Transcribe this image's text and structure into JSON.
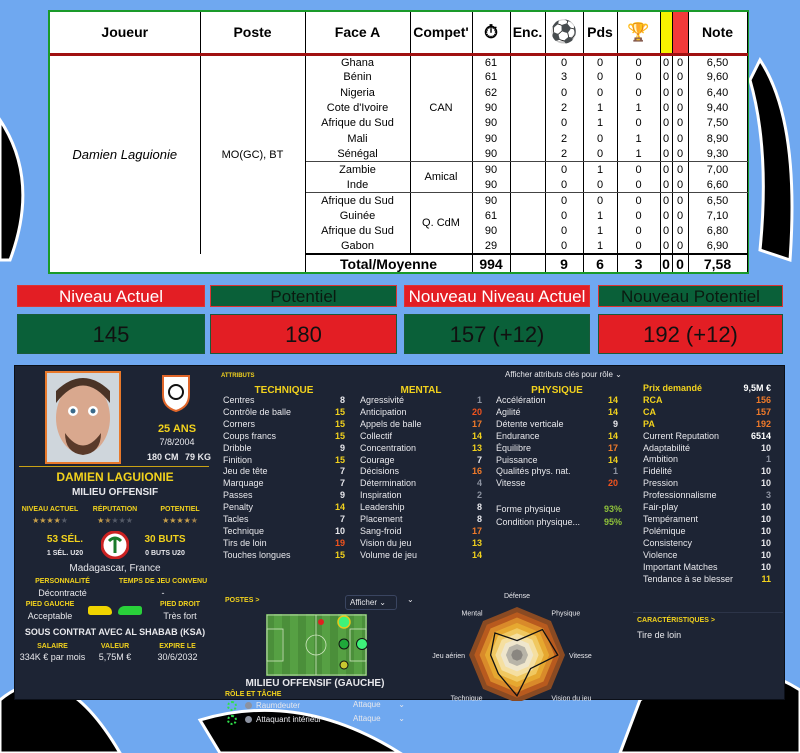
{
  "stats_table": {
    "headers": [
      "Joueur",
      "Poste",
      "Face A",
      "Compet'",
      "clock-icon",
      "Enc.",
      "ball-icon",
      "Pds",
      "trophy-icon",
      "yellow-card",
      "red-card",
      "Note"
    ],
    "player": "Damien Laguionie",
    "position": "MO(GC), BT",
    "groups": [
      {
        "competition": "CAN",
        "matches": [
          [
            "Ghana",
            "61",
            "",
            "0",
            "0",
            "0",
            "0",
            "0",
            "6,50"
          ],
          [
            "Bénin",
            "61",
            "",
            "3",
            "0",
            "0",
            "0",
            "0",
            "9,60"
          ],
          [
            "Nigeria",
            "62",
            "",
            "0",
            "0",
            "0",
            "0",
            "0",
            "6,40"
          ],
          [
            "Cote d'Ivoire",
            "90",
            "",
            "2",
            "1",
            "1",
            "0",
            "0",
            "9,40"
          ],
          [
            "Afrique du Sud",
            "90",
            "",
            "0",
            "1",
            "0",
            "0",
            "0",
            "7,50"
          ],
          [
            "Mali",
            "90",
            "",
            "2",
            "0",
            "1",
            "0",
            "0",
            "8,90"
          ],
          [
            "Sénégal",
            "90",
            "",
            "2",
            "0",
            "1",
            "0",
            "0",
            "9,30"
          ]
        ]
      },
      {
        "competition": "Amical",
        "matches": [
          [
            "Zambie",
            "90",
            "",
            "0",
            "1",
            "0",
            "0",
            "0",
            "7,00"
          ],
          [
            "Inde",
            "90",
            "",
            "0",
            "0",
            "0",
            "0",
            "0",
            "6,60"
          ]
        ]
      },
      {
        "competition": "Q. CdM",
        "matches": [
          [
            "Afrique du Sud",
            "90",
            "",
            "0",
            "0",
            "0",
            "0",
            "0",
            "6,50"
          ],
          [
            "Guinée",
            "61",
            "",
            "0",
            "1",
            "0",
            "0",
            "0",
            "7,10"
          ],
          [
            "Afrique du Sud",
            "90",
            "",
            "0",
            "1",
            "0",
            "0",
            "0",
            "6,80"
          ],
          [
            "Gabon",
            "29",
            "",
            "0",
            "1",
            "0",
            "0",
            "0",
            "6,90"
          ]
        ]
      }
    ],
    "total": {
      "label": "Total/Moyenne",
      "minutes": "994",
      "enc": "",
      "goals": "9",
      "assists": "6",
      "trophies": "3",
      "yellow": "0",
      "red": "0",
      "note": "7,58"
    }
  },
  "levels": [
    {
      "label": "Niveau Actuel",
      "value": "145",
      "label_color": "#e31e24",
      "value_color": "#0a6039"
    },
    {
      "label": "Potentiel",
      "value": "180",
      "label_color": "#0a6039",
      "value_color": "#e31e24"
    },
    {
      "label": "Nouveau Niveau Actuel",
      "value": "157 (+12)",
      "label_color": "#e31e24",
      "value_color": "#0a6039"
    },
    {
      "label": "Nouveau Potentiel",
      "value": "192 (+12)",
      "label_color": "#0a6039",
      "value_color": "#e31e24"
    }
  ],
  "profile": {
    "age": "25 ANS",
    "birth": "7/8/2004",
    "height": "180 CM",
    "weight": "79 KG",
    "name": "DAMIEN LAGUIONIE",
    "role": "MILIEU OFFENSIF",
    "current_label": "NIVEAU ACTUEL",
    "current_stars": 4,
    "rep_label": "RÉPUTATION",
    "rep_stars": 1.5,
    "pot_label": "POTENTIEL",
    "pot_stars": 4.5,
    "caps": "53 SÉL.",
    "goals": "30 BUTS",
    "caps_u20": "1 SÉL. U20",
    "goals_u20": "0 BUTS U20",
    "nationality": "Madagascar, France",
    "personality_label": "PERSONNALITÉ",
    "personality": "Décontracté",
    "playtime_label": "TEMPS DE JEU CONVENU",
    "playtime": "-",
    "left_foot_label": "PIED GAUCHE",
    "left_foot": "Acceptable",
    "right_foot_label": "PIED DROIT",
    "right_foot": "Très fort",
    "contract": "SOUS CONTRAT AVEC AL SHABAB (KSA)",
    "salary_label": "SALAIRE",
    "salary": "334K € par mois",
    "value_label": "VALEUR",
    "value": "5,75M €",
    "expiry_label": "EXPIRE LE",
    "expiry": "30/6/2032"
  },
  "attributes": {
    "title": "ATTRIBUTS",
    "role_toggle": "Afficher attributs clés pour rôle",
    "technique": {
      "title": "TECHNIQUE",
      "items": [
        [
          "Centres",
          8
        ],
        [
          "Contrôle de balle",
          15
        ],
        [
          "Corners",
          15
        ],
        [
          "Coups francs",
          15
        ],
        [
          "Dribble",
          9
        ],
        [
          "Finition",
          15
        ],
        [
          "Jeu de tête",
          7
        ],
        [
          "Marquage",
          7
        ],
        [
          "Passes",
          9
        ],
        [
          "Penalty",
          14
        ],
        [
          "Tacles",
          7
        ],
        [
          "Technique",
          10
        ],
        [
          "Tirs de loin",
          19
        ],
        [
          "Touches longues",
          15
        ]
      ]
    },
    "mental": {
      "title": "MENTAL",
      "items": [
        [
          "Agressivité",
          1
        ],
        [
          "Anticipation",
          20
        ],
        [
          "Appels de balle",
          17
        ],
        [
          "Collectif",
          14
        ],
        [
          "Concentration",
          13
        ],
        [
          "Courage",
          7
        ],
        [
          "Décisions",
          16
        ],
        [
          "Détermination",
          4
        ],
        [
          "Inspiration",
          2
        ],
        [
          "Leadership",
          8
        ],
        [
          "Placement",
          8
        ],
        [
          "Sang-froid",
          17
        ],
        [
          "Vision du jeu",
          13
        ],
        [
          "Volume de jeu",
          14
        ]
      ]
    },
    "physique": {
      "title": "PHYSIQUE",
      "items": [
        [
          "Accélération",
          14
        ],
        [
          "Agilité",
          14
        ],
        [
          "Détente verticale",
          9
        ],
        [
          "Endurance",
          14
        ],
        [
          "Équilibre",
          17
        ],
        [
          "Puissance",
          14
        ],
        [
          "Qualités phys. nat.",
          1
        ],
        [
          "Vitesse",
          20
        ]
      ]
    },
    "fitness": [
      [
        "Forme physique",
        "93%"
      ],
      [
        "Condition physique...",
        "95%"
      ]
    ]
  },
  "hidden": {
    "items": [
      [
        "Prix demandé",
        "9,5M  €"
      ],
      [
        "RCA",
        "156"
      ],
      [
        "CA",
        "157"
      ],
      [
        "PA",
        "192"
      ],
      [
        "Current Reputation",
        "6514"
      ],
      [
        "Adaptabilité",
        "10"
      ],
      [
        "Ambition",
        "1"
      ],
      [
        "Fidélité",
        "10"
      ],
      [
        "Pression",
        "10"
      ],
      [
        "Professionnalisme",
        "3"
      ],
      [
        "Fair-play",
        "10"
      ],
      [
        "Tempérament",
        "10"
      ],
      [
        "Polémique",
        "10"
      ],
      [
        "Consistency",
        "10"
      ],
      [
        "Violence",
        "10"
      ],
      [
        "Important Matches",
        "10"
      ],
      [
        "Tendance à se blesser",
        "11"
      ]
    ]
  },
  "positions": {
    "title": "POSTES >",
    "show": "Afficher",
    "position_name": "MILIEU OFFENSIF (GAUCHE)",
    "roles_title": "RÔLE ET TÂCHE",
    "roles": [
      [
        "Raumdeuter",
        "Attaque"
      ],
      [
        "Attaquant intérieur",
        "Attaque"
      ]
    ]
  },
  "radar": {
    "axes": [
      "Défense",
      "Physique",
      "Vitesse",
      "Vision du jeu",
      "Attaque",
      "Technique",
      "Jeu aérien",
      "Mental"
    ],
    "values": [
      0.3,
      0.75,
      0.85,
      0.4,
      0.85,
      0.55,
      0.55,
      0.65
    ]
  },
  "traits": {
    "title": "CARACTÉRISTIQUES >",
    "items": [
      "Tire de loin"
    ]
  }
}
